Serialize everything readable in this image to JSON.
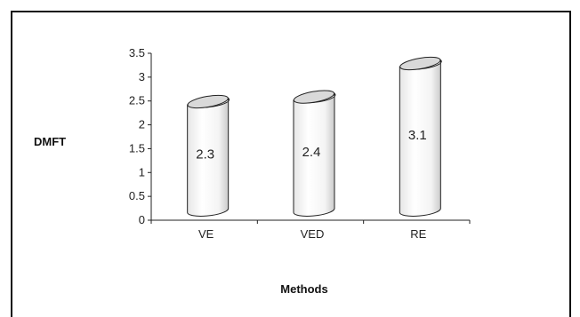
{
  "chart_data": {
    "type": "bar",
    "style": "3d-cylinder",
    "categories": [
      "VE",
      "VED",
      "RE"
    ],
    "values": [
      2.3,
      2.4,
      3.1
    ],
    "data_labels": [
      "2.3",
      "2.4",
      "3.1"
    ],
    "title": "",
    "xlabel": "Methods",
    "ylabel": "DMFT",
    "ylim": [
      0,
      3.5
    ],
    "yticks": [
      "0",
      "0.5",
      "1",
      "1.5",
      "2",
      "2.5",
      "3",
      "3.5"
    ],
    "grid": false,
    "colors": {
      "bar_fill": "#ffffff",
      "bar_top": "#d9d9d9",
      "axis": "#222222"
    }
  }
}
